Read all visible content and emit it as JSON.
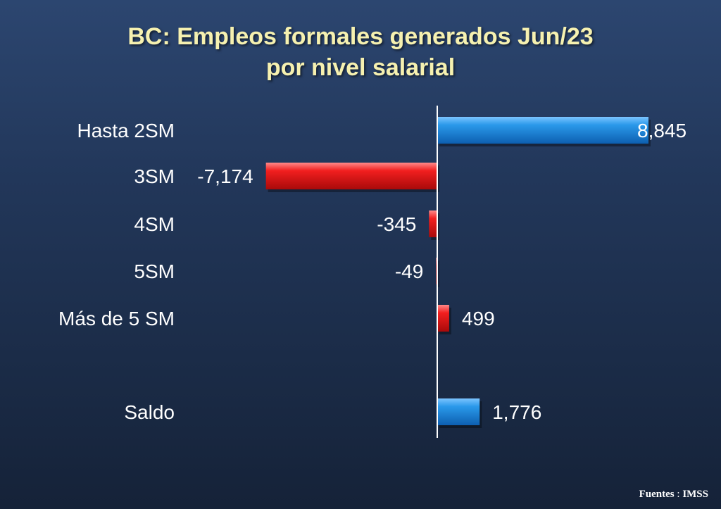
{
  "title_line1": "BC: Empleos formales generados Jun/23",
  "title_line2": "por nivel salarial",
  "source": {
    "label": "Fuentes",
    "separator": " : ",
    "value": "IMSS"
  },
  "colors": {
    "positive_blue": "#1e8ee0",
    "negative_red": "#ee1a1a",
    "title": "#f6f1b0",
    "text": "#ffffff",
    "axis": "#ffffff"
  },
  "chart_data": {
    "type": "bar",
    "orientation": "horizontal",
    "title": "BC: Empleos formales generados Jun/23 por nivel salarial",
    "xlim": [
      -7500,
      9000
    ],
    "grid": false,
    "legend": "none",
    "categories": [
      "Hasta 2SM",
      "3SM",
      "4SM",
      "5SM",
      "Más de 5 SM",
      "Saldo"
    ],
    "values": [
      8845,
      -7174,
      -345,
      -49,
      499,
      1776
    ],
    "value_labels": [
      "8,845",
      "-7,174",
      "-345",
      "-49",
      "499",
      "1,776"
    ],
    "bar_colors": [
      "blue",
      "red",
      "red",
      "red",
      "red",
      "blue"
    ]
  }
}
